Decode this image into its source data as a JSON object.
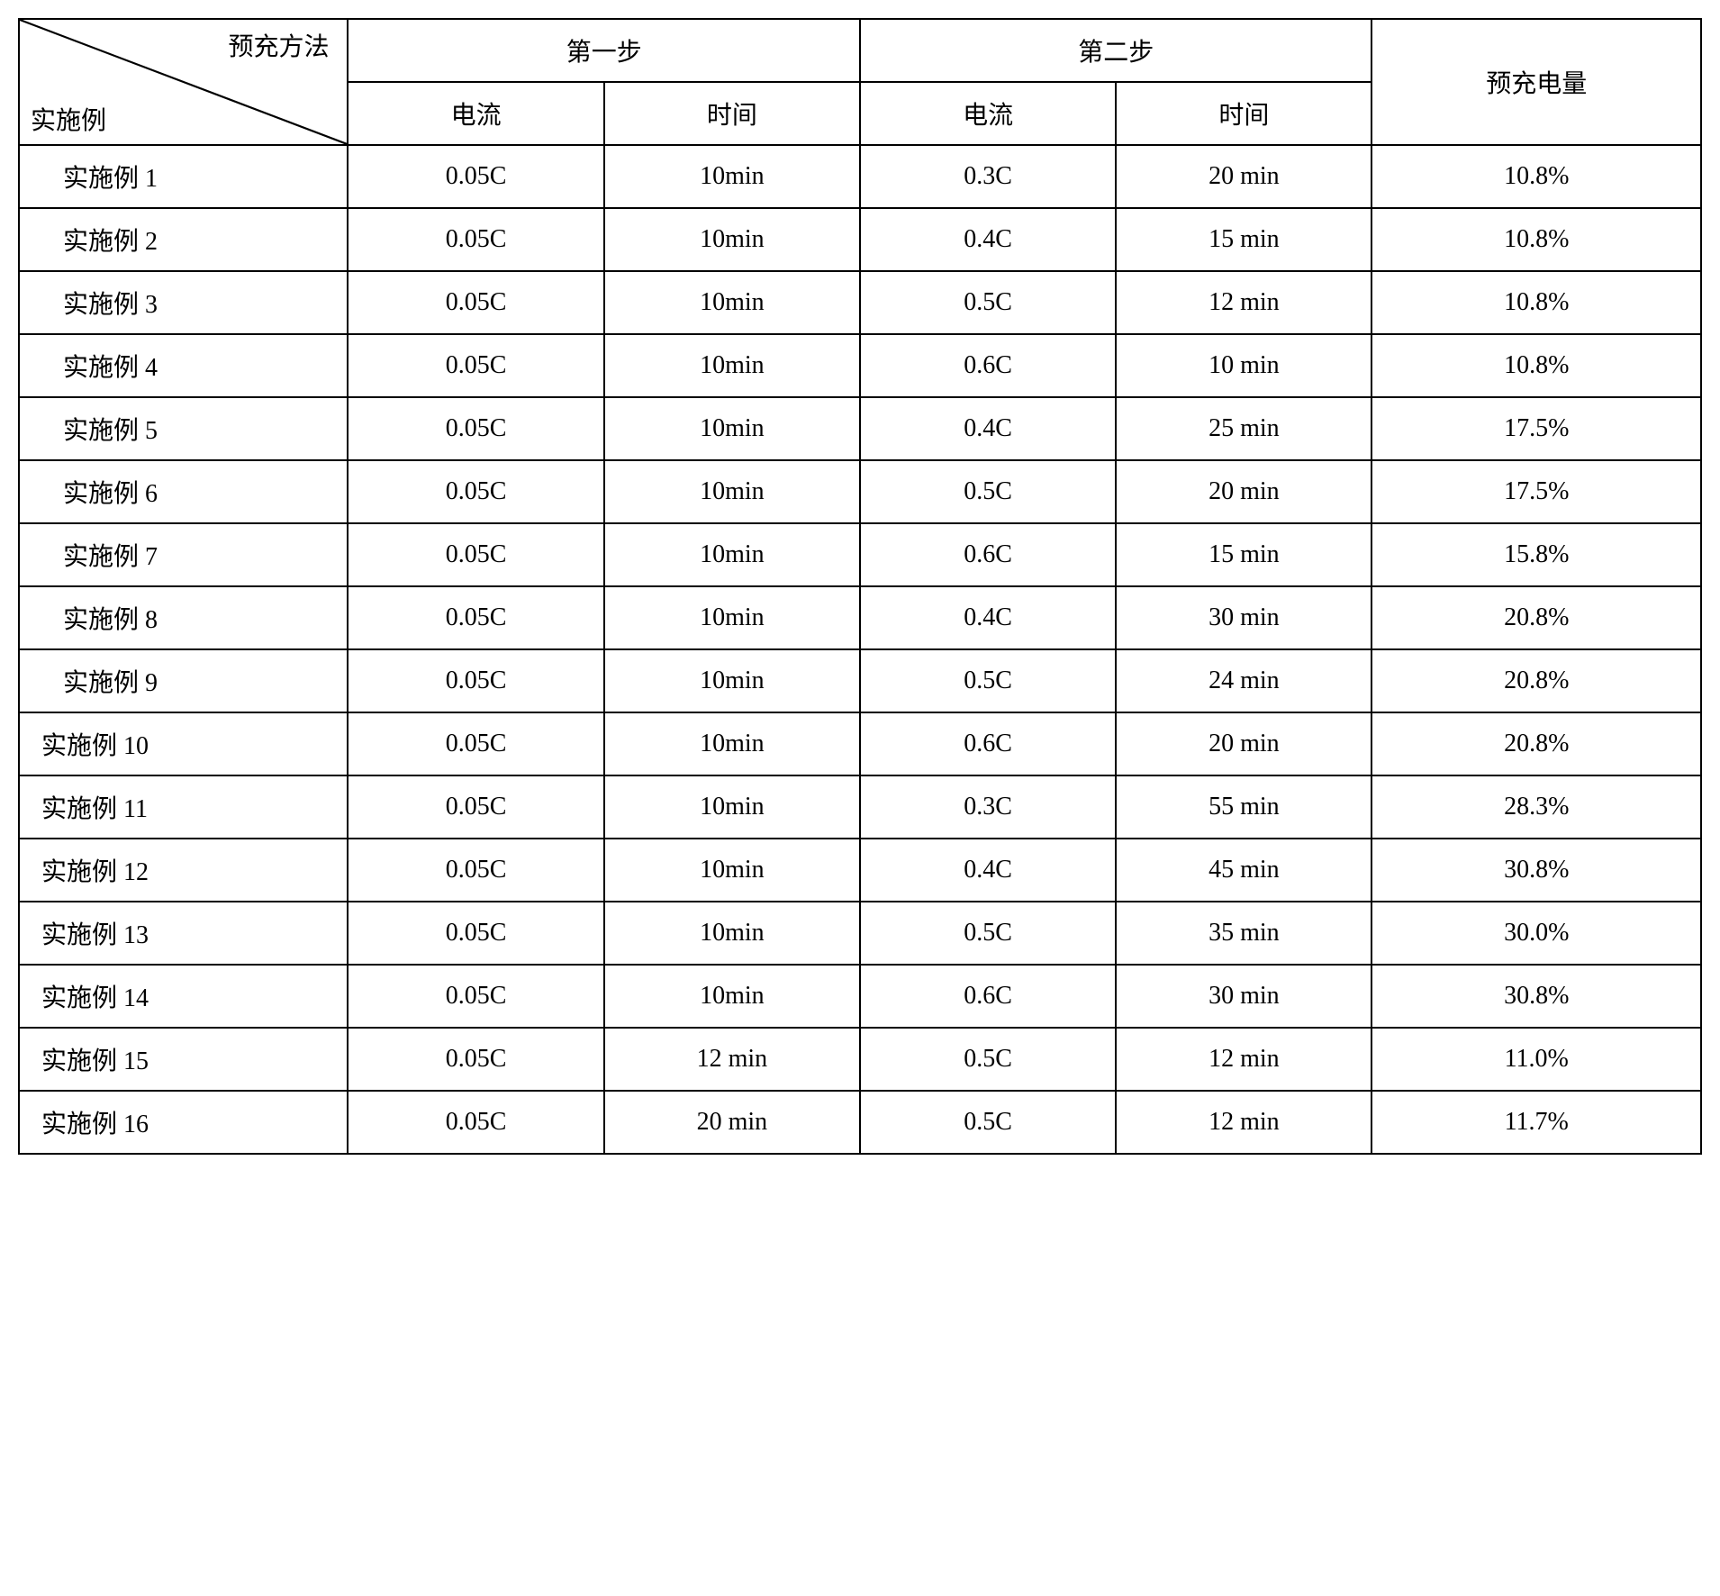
{
  "header": {
    "diagTop": "预充方法",
    "diagBottom": "实施例",
    "step1": "第一步",
    "step2": "第二步",
    "precharge": "预充电量",
    "current": "电流",
    "time": "时间"
  },
  "rows": [
    {
      "label": "实施例 1",
      "indent": true,
      "s1c": "0.05C",
      "s1t": "10min",
      "s2c": "0.3C",
      "s2t": "20 min",
      "pc": "10.8%"
    },
    {
      "label": "实施例 2",
      "indent": true,
      "s1c": "0.05C",
      "s1t": "10min",
      "s2c": "0.4C",
      "s2t": "15 min",
      "pc": "10.8%"
    },
    {
      "label": "实施例 3",
      "indent": true,
      "s1c": "0.05C",
      "s1t": "10min",
      "s2c": "0.5C",
      "s2t": "12 min",
      "pc": "10.8%"
    },
    {
      "label": "实施例 4",
      "indent": true,
      "s1c": "0.05C",
      "s1t": "10min",
      "s2c": "0.6C",
      "s2t": "10 min",
      "pc": "10.8%"
    },
    {
      "label": "实施例 5",
      "indent": true,
      "s1c": "0.05C",
      "s1t": "10min",
      "s2c": "0.4C",
      "s2t": "25 min",
      "pc": "17.5%"
    },
    {
      "label": "实施例 6",
      "indent": true,
      "s1c": "0.05C",
      "s1t": "10min",
      "s2c": "0.5C",
      "s2t": "20 min",
      "pc": "17.5%"
    },
    {
      "label": "实施例 7",
      "indent": true,
      "s1c": "0.05C",
      "s1t": "10min",
      "s2c": "0.6C",
      "s2t": "15 min",
      "pc": "15.8%"
    },
    {
      "label": "实施例 8",
      "indent": true,
      "s1c": "0.05C",
      "s1t": "10min",
      "s2c": "0.4C",
      "s2t": "30 min",
      "pc": "20.8%"
    },
    {
      "label": "实施例 9",
      "indent": true,
      "s1c": "0.05C",
      "s1t": "10min",
      "s2c": "0.5C",
      "s2t": "24 min",
      "pc": "20.8%"
    },
    {
      "label": "实施例 10",
      "indent": false,
      "s1c": "0.05C",
      "s1t": "10min",
      "s2c": "0.6C",
      "s2t": "20 min",
      "pc": "20.8%"
    },
    {
      "label": "实施例 11",
      "indent": false,
      "s1c": "0.05C",
      "s1t": "10min",
      "s2c": "0.3C",
      "s2t": "55 min",
      "pc": "28.3%"
    },
    {
      "label": "实施例 12",
      "indent": false,
      "s1c": "0.05C",
      "s1t": "10min",
      "s2c": "0.4C",
      "s2t": "45 min",
      "pc": "30.8%"
    },
    {
      "label": "实施例 13",
      "indent": false,
      "s1c": "0.05C",
      "s1t": "10min",
      "s2c": "0.5C",
      "s2t": "35 min",
      "pc": "30.0%"
    },
    {
      "label": "实施例 14",
      "indent": false,
      "s1c": "0.05C",
      "s1t": "10min",
      "s2c": "0.6C",
      "s2t": "30 min",
      "pc": "30.8%"
    },
    {
      "label": "实施例 15",
      "indent": false,
      "s1c": "0.05C",
      "s1t": "12 min",
      "s2c": "0.5C",
      "s2t": "12 min",
      "pc": "11.0%"
    },
    {
      "label": "实施例 16",
      "indent": false,
      "s1c": "0.05C",
      "s1t": "20 min",
      "s2c": "0.5C",
      "s2t": "12 min",
      "pc": "11.7%"
    }
  ],
  "layout": {
    "colWidthsPct": [
      18,
      14,
      14,
      14,
      14,
      18
    ],
    "borderColor": "#000000",
    "background": "#ffffff",
    "fontSizePx": 28
  }
}
